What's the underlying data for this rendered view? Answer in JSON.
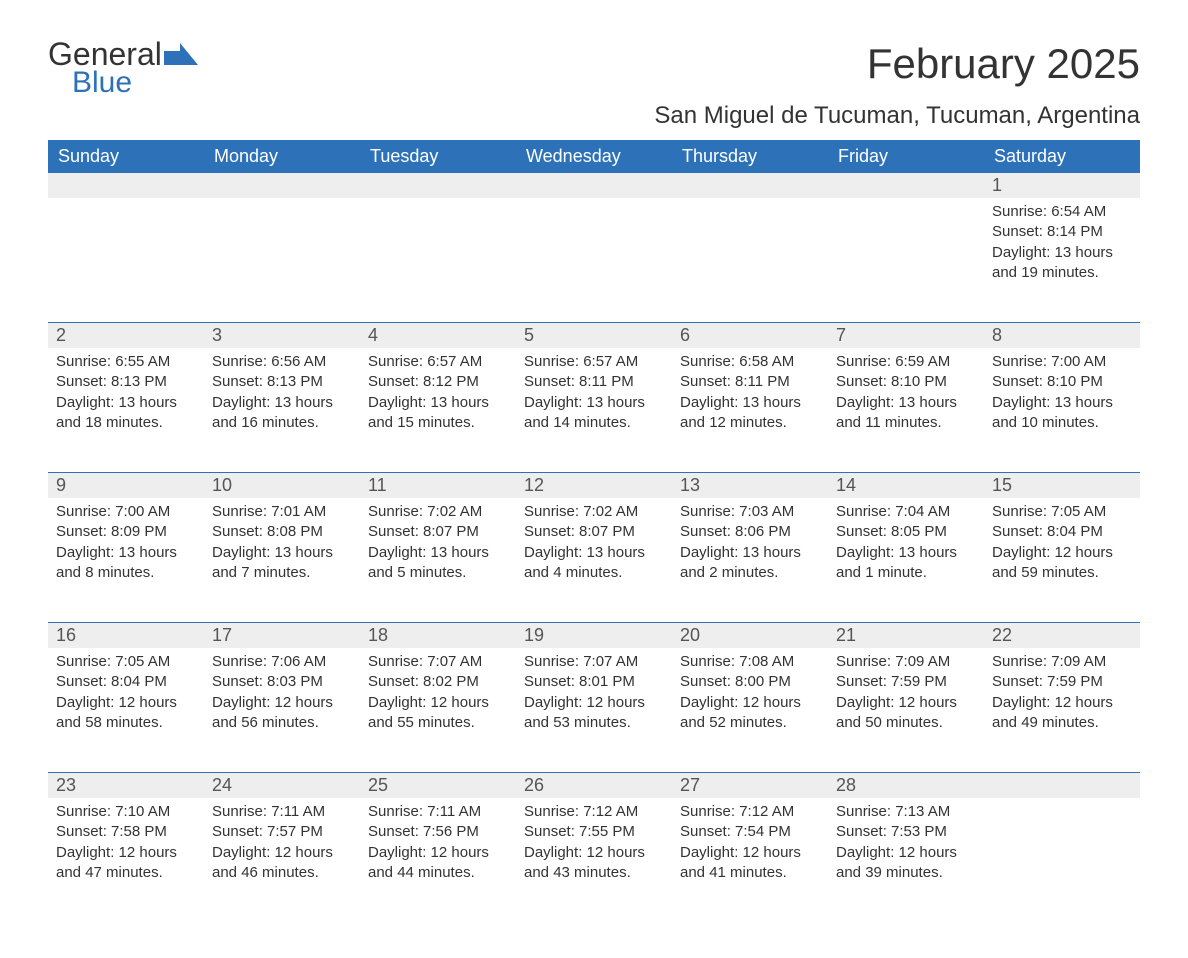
{
  "logo": {
    "part1": "General",
    "part2": "Blue"
  },
  "title": "February 2025",
  "location": "San Miguel de Tucuman, Tucuman, Argentina",
  "colors": {
    "accent": "#2d72b8",
    "header_bg": "#2d72b8",
    "header_text": "#ffffff",
    "daynum_bg": "#eeeeee",
    "text": "#333333",
    "page_bg": "#ffffff"
  },
  "typography": {
    "title_fontsize": 42,
    "location_fontsize": 24,
    "dow_fontsize": 18,
    "daynum_fontsize": 18,
    "detail_fontsize": 15
  },
  "days_of_week": [
    "Sunday",
    "Monday",
    "Tuesday",
    "Wednesday",
    "Thursday",
    "Friday",
    "Saturday"
  ],
  "weeks": [
    [
      {
        "n": "",
        "sunrise": "",
        "sunset": "",
        "daylight": ""
      },
      {
        "n": "",
        "sunrise": "",
        "sunset": "",
        "daylight": ""
      },
      {
        "n": "",
        "sunrise": "",
        "sunset": "",
        "daylight": ""
      },
      {
        "n": "",
        "sunrise": "",
        "sunset": "",
        "daylight": ""
      },
      {
        "n": "",
        "sunrise": "",
        "sunset": "",
        "daylight": ""
      },
      {
        "n": "",
        "sunrise": "",
        "sunset": "",
        "daylight": ""
      },
      {
        "n": "1",
        "sunrise": "Sunrise: 6:54 AM",
        "sunset": "Sunset: 8:14 PM",
        "daylight": "Daylight: 13 hours and 19 minutes."
      }
    ],
    [
      {
        "n": "2",
        "sunrise": "Sunrise: 6:55 AM",
        "sunset": "Sunset: 8:13 PM",
        "daylight": "Daylight: 13 hours and 18 minutes."
      },
      {
        "n": "3",
        "sunrise": "Sunrise: 6:56 AM",
        "sunset": "Sunset: 8:13 PM",
        "daylight": "Daylight: 13 hours and 16 minutes."
      },
      {
        "n": "4",
        "sunrise": "Sunrise: 6:57 AM",
        "sunset": "Sunset: 8:12 PM",
        "daylight": "Daylight: 13 hours and 15 minutes."
      },
      {
        "n": "5",
        "sunrise": "Sunrise: 6:57 AM",
        "sunset": "Sunset: 8:11 PM",
        "daylight": "Daylight: 13 hours and 14 minutes."
      },
      {
        "n": "6",
        "sunrise": "Sunrise: 6:58 AM",
        "sunset": "Sunset: 8:11 PM",
        "daylight": "Daylight: 13 hours and 12 minutes."
      },
      {
        "n": "7",
        "sunrise": "Sunrise: 6:59 AM",
        "sunset": "Sunset: 8:10 PM",
        "daylight": "Daylight: 13 hours and 11 minutes."
      },
      {
        "n": "8",
        "sunrise": "Sunrise: 7:00 AM",
        "sunset": "Sunset: 8:10 PM",
        "daylight": "Daylight: 13 hours and 10 minutes."
      }
    ],
    [
      {
        "n": "9",
        "sunrise": "Sunrise: 7:00 AM",
        "sunset": "Sunset: 8:09 PM",
        "daylight": "Daylight: 13 hours and 8 minutes."
      },
      {
        "n": "10",
        "sunrise": "Sunrise: 7:01 AM",
        "sunset": "Sunset: 8:08 PM",
        "daylight": "Daylight: 13 hours and 7 minutes."
      },
      {
        "n": "11",
        "sunrise": "Sunrise: 7:02 AM",
        "sunset": "Sunset: 8:07 PM",
        "daylight": "Daylight: 13 hours and 5 minutes."
      },
      {
        "n": "12",
        "sunrise": "Sunrise: 7:02 AM",
        "sunset": "Sunset: 8:07 PM",
        "daylight": "Daylight: 13 hours and 4 minutes."
      },
      {
        "n": "13",
        "sunrise": "Sunrise: 7:03 AM",
        "sunset": "Sunset: 8:06 PM",
        "daylight": "Daylight: 13 hours and 2 minutes."
      },
      {
        "n": "14",
        "sunrise": "Sunrise: 7:04 AM",
        "sunset": "Sunset: 8:05 PM",
        "daylight": "Daylight: 13 hours and 1 minute."
      },
      {
        "n": "15",
        "sunrise": "Sunrise: 7:05 AM",
        "sunset": "Sunset: 8:04 PM",
        "daylight": "Daylight: 12 hours and 59 minutes."
      }
    ],
    [
      {
        "n": "16",
        "sunrise": "Sunrise: 7:05 AM",
        "sunset": "Sunset: 8:04 PM",
        "daylight": "Daylight: 12 hours and 58 minutes."
      },
      {
        "n": "17",
        "sunrise": "Sunrise: 7:06 AM",
        "sunset": "Sunset: 8:03 PM",
        "daylight": "Daylight: 12 hours and 56 minutes."
      },
      {
        "n": "18",
        "sunrise": "Sunrise: 7:07 AM",
        "sunset": "Sunset: 8:02 PM",
        "daylight": "Daylight: 12 hours and 55 minutes."
      },
      {
        "n": "19",
        "sunrise": "Sunrise: 7:07 AM",
        "sunset": "Sunset: 8:01 PM",
        "daylight": "Daylight: 12 hours and 53 minutes."
      },
      {
        "n": "20",
        "sunrise": "Sunrise: 7:08 AM",
        "sunset": "Sunset: 8:00 PM",
        "daylight": "Daylight: 12 hours and 52 minutes."
      },
      {
        "n": "21",
        "sunrise": "Sunrise: 7:09 AM",
        "sunset": "Sunset: 7:59 PM",
        "daylight": "Daylight: 12 hours and 50 minutes."
      },
      {
        "n": "22",
        "sunrise": "Sunrise: 7:09 AM",
        "sunset": "Sunset: 7:59 PM",
        "daylight": "Daylight: 12 hours and 49 minutes."
      }
    ],
    [
      {
        "n": "23",
        "sunrise": "Sunrise: 7:10 AM",
        "sunset": "Sunset: 7:58 PM",
        "daylight": "Daylight: 12 hours and 47 minutes."
      },
      {
        "n": "24",
        "sunrise": "Sunrise: 7:11 AM",
        "sunset": "Sunset: 7:57 PM",
        "daylight": "Daylight: 12 hours and 46 minutes."
      },
      {
        "n": "25",
        "sunrise": "Sunrise: 7:11 AM",
        "sunset": "Sunset: 7:56 PM",
        "daylight": "Daylight: 12 hours and 44 minutes."
      },
      {
        "n": "26",
        "sunrise": "Sunrise: 7:12 AM",
        "sunset": "Sunset: 7:55 PM",
        "daylight": "Daylight: 12 hours and 43 minutes."
      },
      {
        "n": "27",
        "sunrise": "Sunrise: 7:12 AM",
        "sunset": "Sunset: 7:54 PM",
        "daylight": "Daylight: 12 hours and 41 minutes."
      },
      {
        "n": "28",
        "sunrise": "Sunrise: 7:13 AM",
        "sunset": "Sunset: 7:53 PM",
        "daylight": "Daylight: 12 hours and 39 minutes."
      },
      {
        "n": "",
        "sunrise": "",
        "sunset": "",
        "daylight": ""
      }
    ]
  ]
}
